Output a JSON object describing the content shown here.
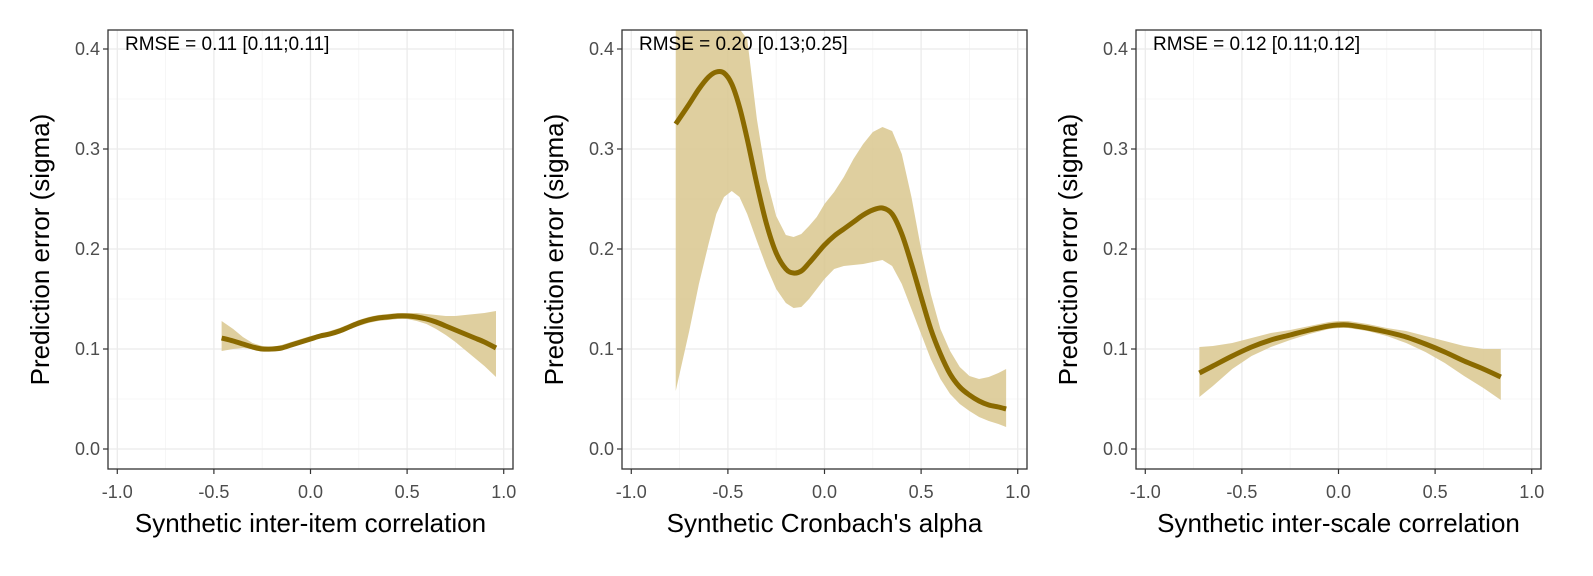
{
  "chart_data": [
    {
      "type": "line",
      "annotation": "RMSE = 0.11 [0.11;0.11]",
      "xlabel": "Synthetic inter-item correlation",
      "ylabel": "Prediction error (sigma)",
      "xlim": [
        -1.0,
        1.0
      ],
      "ylim": [
        0.0,
        0.4
      ],
      "xticks": [
        "-1.0",
        "-0.5",
        "0.0",
        "0.5",
        "1.0"
      ],
      "yticks": [
        "0.0",
        "0.1",
        "0.2",
        "0.3",
        "0.4"
      ],
      "grid": true,
      "series": [
        {
          "line_color": "#8a6a00",
          "band_color": "#d9c78e",
          "x": [
            -0.46,
            -0.4,
            -0.35,
            -0.3,
            -0.25,
            -0.2,
            -0.15,
            -0.1,
            -0.05,
            0.0,
            0.05,
            0.1,
            0.15,
            0.2,
            0.25,
            0.3,
            0.35,
            0.4,
            0.45,
            0.5,
            0.55,
            0.6,
            0.65,
            0.7,
            0.75,
            0.8,
            0.85,
            0.9,
            0.96
          ],
          "y": [
            0.111,
            0.108,
            0.105,
            0.102,
            0.1,
            0.1,
            0.101,
            0.104,
            0.107,
            0.11,
            0.113,
            0.115,
            0.118,
            0.122,
            0.126,
            0.129,
            0.131,
            0.132,
            0.133,
            0.133,
            0.132,
            0.13,
            0.127,
            0.123,
            0.119,
            0.115,
            0.111,
            0.107,
            0.101
          ],
          "lower": [
            0.098,
            0.1,
            0.101,
            0.1,
            0.098,
            0.098,
            0.099,
            0.102,
            0.105,
            0.108,
            0.111,
            0.113,
            0.116,
            0.12,
            0.123,
            0.126,
            0.128,
            0.129,
            0.13,
            0.13,
            0.128,
            0.125,
            0.12,
            0.114,
            0.107,
            0.099,
            0.091,
            0.083,
            0.072
          ],
          "upper": [
            0.128,
            0.12,
            0.112,
            0.106,
            0.103,
            0.102,
            0.104,
            0.107,
            0.11,
            0.113,
            0.115,
            0.118,
            0.121,
            0.125,
            0.129,
            0.132,
            0.134,
            0.135,
            0.136,
            0.136,
            0.136,
            0.135,
            0.134,
            0.133,
            0.133,
            0.134,
            0.135,
            0.136,
            0.138
          ]
        }
      ]
    },
    {
      "type": "line",
      "annotation": "RMSE = 0.20 [0.13;0.25]",
      "xlabel": "Synthetic Cronbach's alpha",
      "ylabel": "Prediction error (sigma)",
      "xlim": [
        -1.0,
        1.0
      ],
      "ylim": [
        0.0,
        0.4
      ],
      "xticks": [
        "-1.0",
        "-0.5",
        "0.0",
        "0.5",
        "1.0"
      ],
      "yticks": [
        "0.0",
        "0.1",
        "0.2",
        "0.3",
        "0.4"
      ],
      "grid": true,
      "series": [
        {
          "line_color": "#8a6a00",
          "band_color": "#d9c78e",
          "x": [
            -0.77,
            -0.7,
            -0.65,
            -0.6,
            -0.56,
            -0.52,
            -0.48,
            -0.44,
            -0.4,
            -0.35,
            -0.3,
            -0.25,
            -0.2,
            -0.16,
            -0.12,
            -0.08,
            -0.04,
            0.0,
            0.05,
            0.1,
            0.15,
            0.2,
            0.25,
            0.3,
            0.35,
            0.4,
            0.45,
            0.5,
            0.55,
            0.6,
            0.65,
            0.7,
            0.75,
            0.8,
            0.85,
            0.9,
            0.94
          ],
          "y": [
            0.325,
            0.345,
            0.36,
            0.372,
            0.377,
            0.376,
            0.365,
            0.342,
            0.31,
            0.265,
            0.225,
            0.196,
            0.18,
            0.176,
            0.178,
            0.186,
            0.195,
            0.204,
            0.213,
            0.22,
            0.227,
            0.234,
            0.239,
            0.241,
            0.235,
            0.215,
            0.185,
            0.152,
            0.12,
            0.095,
            0.075,
            0.062,
            0.054,
            0.048,
            0.044,
            0.042,
            0.04
          ],
          "lower": [
            0.058,
            0.118,
            0.165,
            0.205,
            0.235,
            0.252,
            0.258,
            0.252,
            0.235,
            0.208,
            0.182,
            0.16,
            0.146,
            0.141,
            0.142,
            0.15,
            0.16,
            0.17,
            0.18,
            0.183,
            0.184,
            0.185,
            0.187,
            0.189,
            0.183,
            0.165,
            0.14,
            0.115,
            0.09,
            0.07,
            0.055,
            0.045,
            0.038,
            0.032,
            0.028,
            0.025,
            0.022
          ],
          "upper": [
            0.42,
            0.42,
            0.42,
            0.42,
            0.42,
            0.42,
            0.42,
            0.42,
            0.41,
            0.33,
            0.27,
            0.233,
            0.214,
            0.212,
            0.215,
            0.223,
            0.232,
            0.245,
            0.257,
            0.272,
            0.29,
            0.305,
            0.317,
            0.322,
            0.318,
            0.295,
            0.252,
            0.2,
            0.155,
            0.12,
            0.098,
            0.082,
            0.073,
            0.07,
            0.072,
            0.076,
            0.08
          ]
        }
      ]
    },
    {
      "type": "line",
      "annotation": "RMSE = 0.12 [0.11;0.12]",
      "xlabel": "Synthetic inter-scale correlation",
      "ylabel": "Prediction error (sigma)",
      "xlim": [
        -1.0,
        1.0
      ],
      "ylim": [
        0.0,
        0.4
      ],
      "xticks": [
        "-1.0",
        "-0.5",
        "0.0",
        "0.5",
        "1.0"
      ],
      "yticks": [
        "0.0",
        "0.1",
        "0.2",
        "0.3",
        "0.4"
      ],
      "grid": true,
      "series": [
        {
          "line_color": "#8a6a00",
          "band_color": "#d9c78e",
          "x": [
            -0.72,
            -0.65,
            -0.55,
            -0.45,
            -0.35,
            -0.25,
            -0.15,
            -0.05,
            0.0,
            0.05,
            0.15,
            0.25,
            0.35,
            0.45,
            0.55,
            0.65,
            0.75,
            0.84
          ],
          "y": [
            0.076,
            0.083,
            0.093,
            0.102,
            0.109,
            0.114,
            0.119,
            0.123,
            0.124,
            0.124,
            0.121,
            0.117,
            0.112,
            0.105,
            0.097,
            0.088,
            0.08,
            0.072
          ],
          "lower": [
            0.052,
            0.063,
            0.08,
            0.093,
            0.102,
            0.109,
            0.115,
            0.12,
            0.121,
            0.121,
            0.118,
            0.113,
            0.106,
            0.097,
            0.086,
            0.073,
            0.061,
            0.049
          ],
          "upper": [
            0.102,
            0.103,
            0.106,
            0.111,
            0.116,
            0.119,
            0.123,
            0.127,
            0.128,
            0.128,
            0.125,
            0.121,
            0.118,
            0.113,
            0.108,
            0.103,
            0.1,
            0.1
          ]
        }
      ]
    }
  ]
}
